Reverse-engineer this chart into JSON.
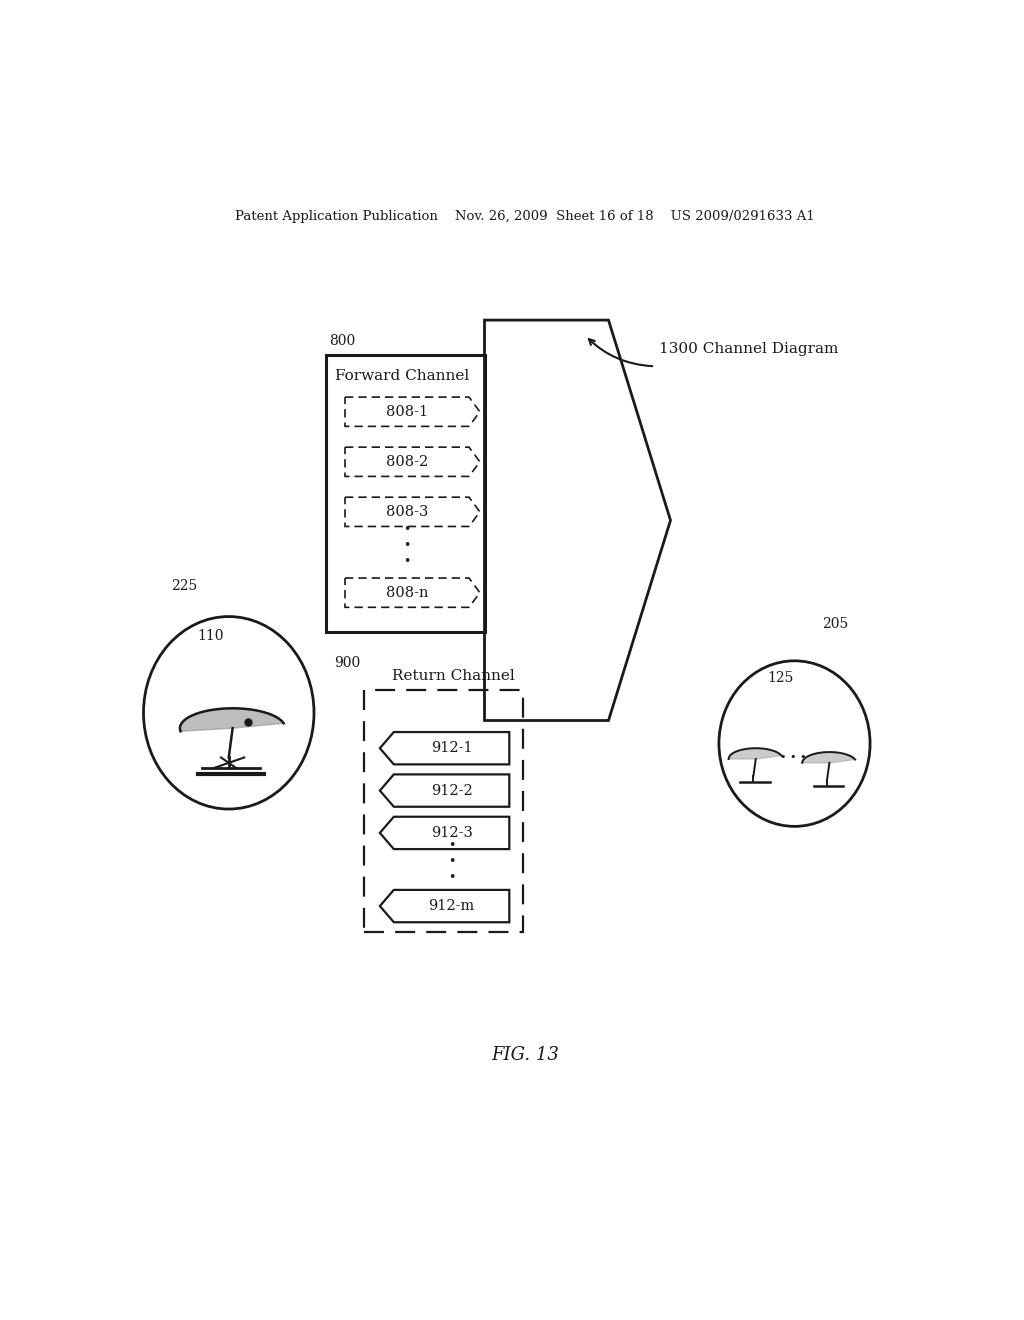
{
  "background_color": "#ffffff",
  "header_text": "Patent Application Publication    Nov. 26, 2009  Sheet 16 of 18    US 2009/0291633 A1",
  "fig_label": "FIG. 13",
  "label_1300": "1300 Channel Diagram",
  "label_800": "800",
  "label_900": "900",
  "label_225": "225",
  "label_110": "110",
  "label_205": "205",
  "label_125": "125",
  "forward_channel_label": "Forward Channel",
  "return_channel_label": "Return Channel",
  "forward_boxes": [
    "808-1",
    "808-2",
    "808-3",
    "808-n"
  ],
  "return_boxes": [
    "912-1",
    "912-2",
    "912-3",
    "912-m"
  ],
  "text_color": "#1a1a1a",
  "line_color": "#1a1a1a"
}
